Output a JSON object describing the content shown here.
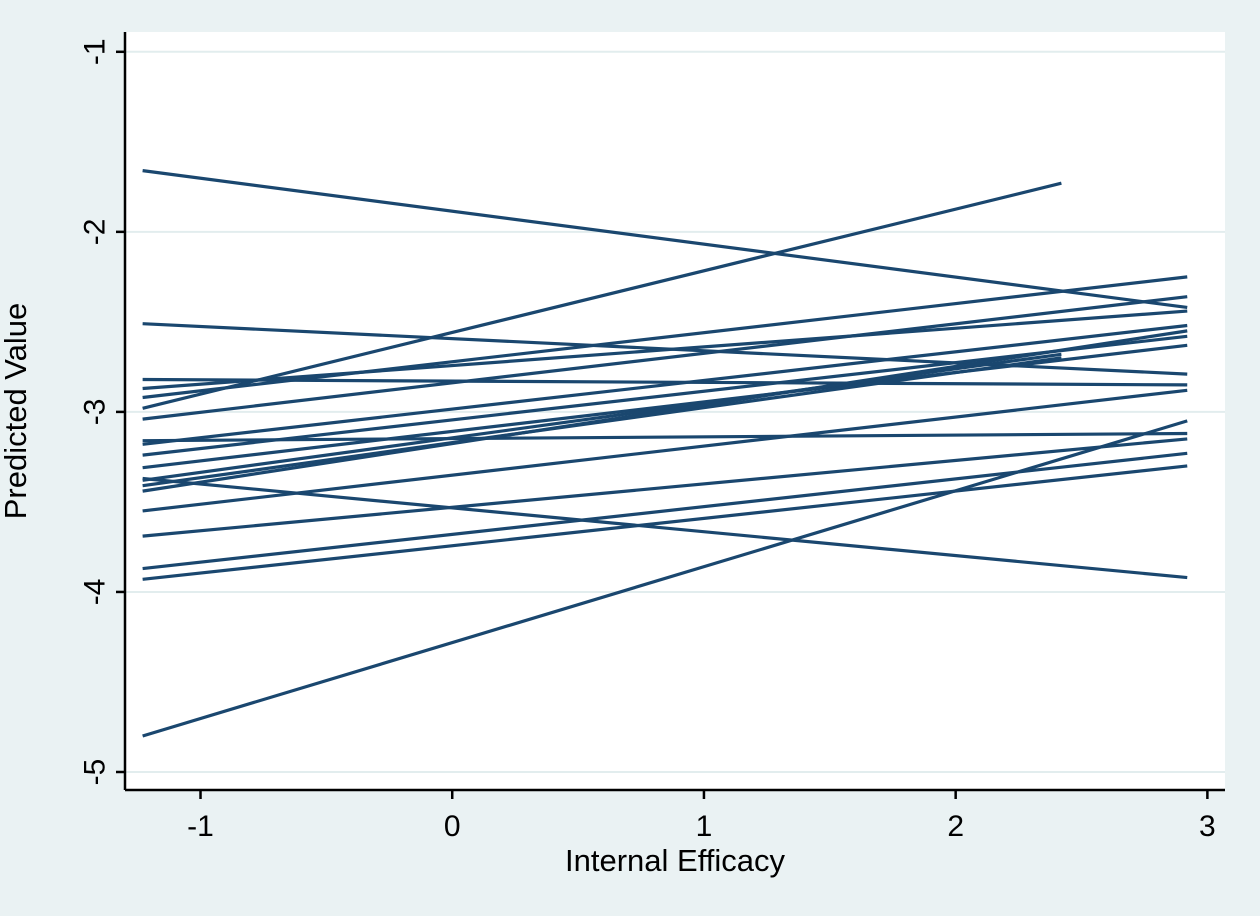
{
  "figure": {
    "background_color": "#eaf2f3",
    "plot_background_color": "#ffffff",
    "line_color": "#1a476f",
    "axis_color": "#000000",
    "gridline_color": "#e2edee",
    "text_color": "#000000"
  },
  "chart_data": {
    "type": "line",
    "title": "",
    "subtitle": "",
    "xlabel": "Internal Efficacy",
    "ylabel": "Predicted Value",
    "xlim": [
      -1.3,
      3.07
    ],
    "ylim": [
      -5.1,
      -0.89
    ],
    "x_ticks": [
      -1,
      0,
      1,
      2,
      3
    ],
    "x_tick_labels": [
      "-1",
      "0",
      "1",
      "2",
      "3"
    ],
    "y_ticks": [
      -1,
      -2,
      -3,
      -4,
      -5
    ],
    "y_tick_labels": [
      "-1",
      "-2",
      "-3",
      "-4",
      "-5"
    ],
    "grid": "horizontal-gridlines-at-y-ticks",
    "legend": "none",
    "series_note": "spaghetti plot of fitted group-specific regression lines; each line given as [x1, y1, x2, y2] in data units",
    "lines": [
      [
        -1.23,
        -1.66,
        2.92,
        -2.42
      ],
      [
        -1.23,
        -2.51,
        2.92,
        -2.79
      ],
      [
        -1.23,
        -2.82,
        2.92,
        -2.85
      ],
      [
        -1.23,
        -2.87,
        2.92,
        -2.44
      ],
      [
        -1.23,
        -2.92,
        2.92,
        -2.25
      ],
      [
        -1.23,
        -2.98,
        2.42,
        -1.73
      ],
      [
        -1.23,
        -3.04,
        2.92,
        -2.36
      ],
      [
        -1.23,
        -3.16,
        2.92,
        -3.12
      ],
      [
        -1.23,
        -3.18,
        2.92,
        -2.52
      ],
      [
        -1.23,
        -3.24,
        2.92,
        -2.58
      ],
      [
        -1.23,
        -3.31,
        2.92,
        -2.63
      ],
      [
        -1.23,
        -3.37,
        2.92,
        -3.92
      ],
      [
        -1.23,
        -3.38,
        2.42,
        -2.68
      ],
      [
        -1.23,
        -3.41,
        2.42,
        -2.7
      ],
      [
        -1.23,
        -3.44,
        2.92,
        -2.55
      ],
      [
        -1.23,
        -3.55,
        2.92,
        -2.88
      ],
      [
        -1.23,
        -3.69,
        2.92,
        -3.15
      ],
      [
        -1.23,
        -3.87,
        2.92,
        -3.23
      ],
      [
        -1.23,
        -3.93,
        2.92,
        -3.3
      ],
      [
        -1.23,
        -4.8,
        2.92,
        -3.05
      ]
    ]
  }
}
